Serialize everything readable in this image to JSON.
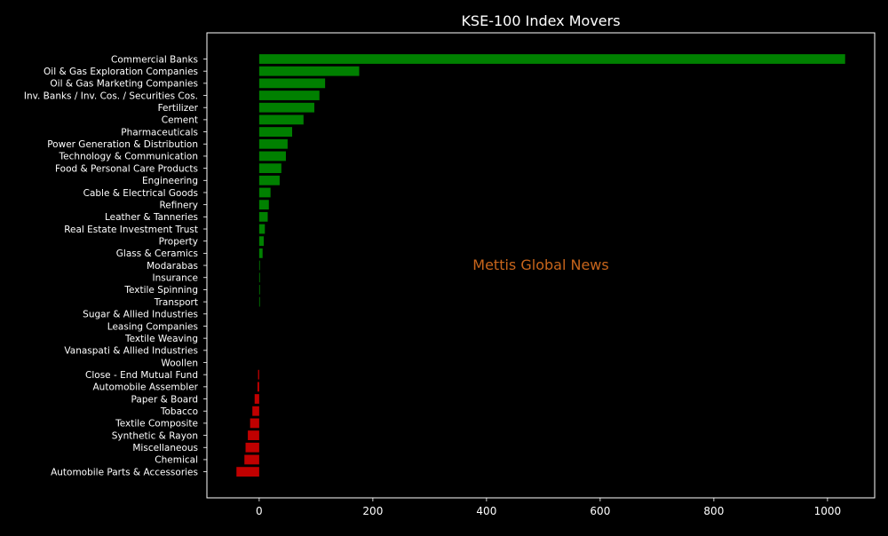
{
  "chart_data": {
    "type": "bar",
    "orientation": "horizontal",
    "title": "KSE-100 Index Movers",
    "watermark": "Mettis Global News",
    "xlim": [
      -92,
      1083
    ],
    "xticks": [
      0,
      200,
      400,
      600,
      800,
      1000
    ],
    "xlabel": "",
    "ylabel": "",
    "grid": false,
    "colors": {
      "background": "#000000",
      "positive": "#008000",
      "negative": "#c00000",
      "text": "#ffffff",
      "watermark": "#c8651b"
    },
    "categories": [
      "Commercial Banks",
      "Oil & Gas Exploration Companies",
      "Oil & Gas Marketing Companies",
      "Inv. Banks / Inv. Cos. / Securities Cos.",
      "Fertilizer",
      "Cement",
      "Pharmaceuticals",
      "Power Generation & Distribution",
      "Technology & Communication",
      "Food & Personal Care Products",
      "Engineering",
      "Cable & Electrical Goods",
      "Refinery",
      "Leather & Tanneries",
      "Real Estate Investment Trust",
      "Property",
      "Glass & Ceramics",
      "Modarabas",
      "Insurance",
      "Textile Spinning",
      "Transport",
      "Sugar & Allied Industries",
      "Leasing Companies",
      "Textile Weaving",
      "Vanaspati & Allied Industries",
      "Woollen",
      "Close - End Mutual Fund",
      "Automobile Assembler",
      "Paper & Board",
      "Tobacco",
      "Textile Composite",
      "Synthetic & Rayon",
      "Miscellaneous",
      "Chemical",
      "Automobile Parts & Accessories"
    ],
    "values": [
      1031,
      176,
      116,
      106,
      97,
      78,
      58,
      50,
      47,
      39,
      36,
      20,
      17,
      15,
      10,
      8,
      6,
      1.2,
      1.0,
      0.9,
      0.8,
      0,
      0,
      0,
      0,
      0,
      -2,
      -3,
      -8,
      -12,
      -16,
      -20,
      -24,
      -26,
      -40
    ]
  }
}
